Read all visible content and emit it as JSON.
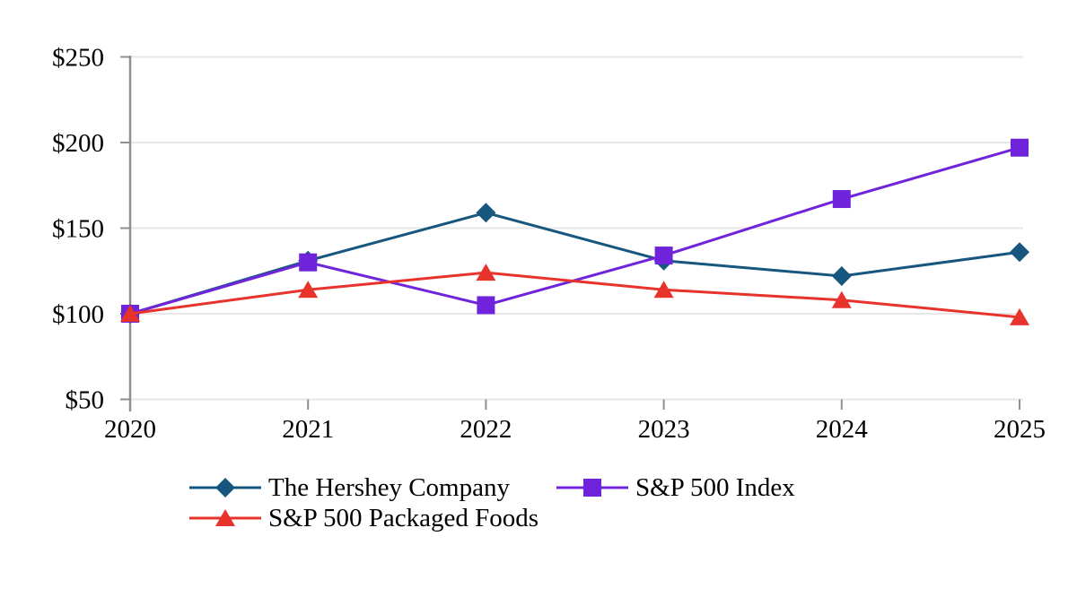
{
  "page": {
    "background": "#ffffff"
  },
  "style": {
    "axis_color": "#8f8f8f",
    "gridline_color": "#e7e7e7",
    "text_color": "#000000"
  },
  "chart_data": {
    "type": "line",
    "title": "",
    "xlabel": "",
    "ylabel": "",
    "x": [
      2020,
      2021,
      2022,
      2023,
      2024,
      2025
    ],
    "x_labels": [
      "2020",
      "2021",
      "2022",
      "2023",
      "2024",
      "2025"
    ],
    "y_ticks": [
      50,
      100,
      150,
      200,
      250
    ],
    "y_tick_labels": [
      "$50",
      "$100",
      "$150",
      "$200",
      "$250"
    ],
    "ylim": [
      50,
      250
    ],
    "grid": "horizontal-only",
    "legend_position": "bottom",
    "series": [
      {
        "name": "The Hershey Company",
        "marker": "diamond",
        "color": "#16567F",
        "values": [
          100,
          131,
          159,
          131,
          122,
          136
        ]
      },
      {
        "name": "S&P 500 Index",
        "marker": "square",
        "color": "#6F24DC",
        "values": [
          100,
          130,
          105,
          134,
          167,
          197
        ]
      },
      {
        "name": "S&P 500 Packaged Foods",
        "marker": "triangle",
        "color": "#E7332B",
        "values": [
          100,
          114,
          124,
          114,
          108,
          98
        ]
      }
    ]
  },
  "legend": {
    "items": [
      {
        "label": "The Hershey Company",
        "marker": "diamond",
        "color": "#16567F"
      },
      {
        "label": "S&P 500 Index",
        "marker": "square",
        "color": "#6F24DC"
      },
      {
        "label": "S&P 500 Packaged Foods",
        "marker": "triangle",
        "color": "#E7332B"
      }
    ]
  }
}
